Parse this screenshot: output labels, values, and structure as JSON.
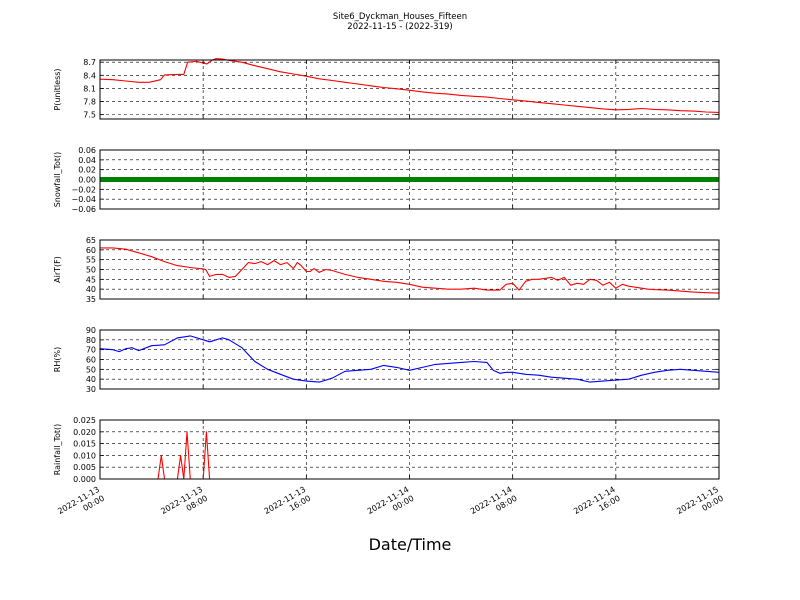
{
  "title_line1": "Site6_Dyckman_Houses_Fifteen",
  "title_line2": "2022-11-15 - (2022-319)",
  "xlabel": "Date/Time",
  "x_ticks": [
    {
      "l1": "2022-11-13",
      "l2": "00:00",
      "h": 0
    },
    {
      "l1": "2022-11-13",
      "l2": "08:00",
      "h": 8
    },
    {
      "l1": "2022-11-13",
      "l2": "16:00",
      "h": 16
    },
    {
      "l1": "2022-11-14",
      "l2": "00:00",
      "h": 24
    },
    {
      "l1": "2022-11-14",
      "l2": "08:00",
      "h": 32
    },
    {
      "l1": "2022-11-14",
      "l2": "16:00",
      "h": 40
    },
    {
      "l1": "2022-11-15",
      "l2": "00:00",
      "h": 48
    }
  ],
  "chart_data": [
    {
      "type": "line",
      "ylabel": "P(unitless)",
      "ylim": [
        7.4,
        8.75
      ],
      "yticks": [
        "7.5",
        "7.8",
        "8.1",
        "8.4",
        "8.7"
      ],
      "ytick_values": [
        7.5,
        7.8,
        8.1,
        8.4,
        8.7
      ],
      "color": "#ff0000",
      "grid": true,
      "x": [
        0,
        1,
        2,
        3,
        3.8,
        4.7,
        5,
        6,
        6.5,
        6.8,
        7.5,
        8,
        8.3,
        8.7,
        9,
        9.5,
        10,
        11,
        12,
        13,
        14,
        15,
        16,
        17,
        18,
        19,
        20,
        21,
        22,
        23,
        24,
        25,
        26,
        27,
        28,
        29,
        30,
        31,
        32,
        33,
        34,
        35,
        36,
        37,
        38,
        39,
        40,
        41,
        42,
        43,
        44,
        45,
        46,
        47,
        48
      ],
      "y": [
        8.31,
        8.3,
        8.27,
        8.24,
        8.24,
        8.3,
        8.41,
        8.42,
        8.42,
        8.7,
        8.72,
        8.68,
        8.66,
        8.75,
        8.78,
        8.77,
        8.74,
        8.7,
        8.62,
        8.55,
        8.48,
        8.43,
        8.38,
        8.32,
        8.28,
        8.24,
        8.2,
        8.16,
        8.12,
        8.09,
        8.06,
        8.02,
        7.99,
        7.97,
        7.94,
        7.92,
        7.9,
        7.87,
        7.84,
        7.81,
        7.78,
        7.75,
        7.72,
        7.69,
        7.66,
        7.63,
        7.61,
        7.62,
        7.64,
        7.62,
        7.61,
        7.59,
        7.58,
        7.56,
        7.55
      ]
    },
    {
      "type": "scatter",
      "ylabel": "Snowfall_Tot()",
      "ylim": [
        -0.06,
        0.06
      ],
      "yticks": [
        "−0.06",
        "−0.04",
        "−0.02",
        "0.00",
        "0.02",
        "0.04",
        "0.06"
      ],
      "ytick_values": [
        -0.06,
        -0.04,
        -0.02,
        0,
        0.02,
        0.04,
        0.06
      ],
      "color": "#008000",
      "grid": true,
      "x_start": 0,
      "x_end": 48,
      "value": 0
    },
    {
      "type": "line",
      "ylabel": "AirT(F)",
      "ylim": [
        35,
        65
      ],
      "yticks": [
        "35",
        "40",
        "45",
        "50",
        "55",
        "60",
        "65"
      ],
      "ytick_values": [
        35,
        40,
        45,
        50,
        55,
        60,
        65
      ],
      "color": "#ff0000",
      "grid": true,
      "x": [
        0,
        1,
        2,
        3,
        4,
        5,
        6,
        7,
        8,
        8.2,
        8.5,
        9,
        9.5,
        10,
        10.5,
        11,
        11.5,
        12,
        12.5,
        13,
        13.5,
        14,
        14.5,
        15,
        15.3,
        15.6,
        16,
        16.3,
        16.6,
        17,
        17.5,
        18,
        19,
        20,
        21,
        22,
        23,
        24,
        25,
        26,
        27,
        28,
        29,
        30,
        31,
        31.5,
        32,
        32.5,
        33,
        33.5,
        34,
        34.5,
        35,
        35.5,
        36,
        36.5,
        37,
        37.5,
        38,
        38.5,
        39,
        39.5,
        40,
        40.5,
        41,
        41.5,
        42,
        42.5,
        43,
        44,
        45,
        46,
        47,
        48
      ],
      "y": [
        61,
        61,
        60.3,
        58.5,
        56.5,
        54,
        52,
        51,
        50.3,
        50,
        46.5,
        47.5,
        47.5,
        46,
        46.5,
        50,
        53.5,
        53,
        54,
        52.5,
        54.5,
        52.5,
        53.5,
        50.5,
        53.5,
        52,
        49,
        49,
        50.5,
        48.5,
        50,
        49.5,
        47.5,
        46,
        45,
        44,
        43.5,
        42.5,
        41,
        40.5,
        40,
        40,
        40.5,
        39.5,
        39.5,
        42.5,
        43,
        39.5,
        44,
        45,
        45,
        45.5,
        46,
        44.5,
        46,
        42,
        43,
        42.5,
        45,
        44.5,
        42,
        43.5,
        40.5,
        42.5,
        41.5,
        41,
        40.5,
        40,
        39.8,
        39.5,
        39,
        38.5,
        38.2,
        38
      ]
    },
    {
      "type": "line",
      "ylabel": "RH(%)",
      "ylim": [
        30,
        90
      ],
      "yticks": [
        "30",
        "40",
        "50",
        "60",
        "70",
        "80",
        "90"
      ],
      "ytick_values": [
        30,
        40,
        50,
        60,
        70,
        80,
        90
      ],
      "color": "#0000ff",
      "grid": true,
      "x": [
        0,
        1,
        1.5,
        2,
        2.5,
        3,
        4,
        5,
        6,
        7,
        8,
        8.5,
        9,
        9.5,
        10,
        11,
        12,
        13,
        14,
        15,
        16,
        17,
        18,
        19,
        20,
        21,
        22,
        23,
        24,
        25,
        26,
        27,
        28,
        29,
        30,
        30.5,
        31,
        31.5,
        32,
        33,
        34,
        35,
        36,
        37,
        38,
        39,
        40,
        41,
        42,
        43,
        44,
        45,
        46,
        47,
        48
      ],
      "y": [
        71,
        70,
        68,
        71,
        72,
        69,
        74,
        75,
        82,
        84,
        80,
        78,
        80,
        82,
        80,
        72,
        58,
        50,
        45,
        40,
        38,
        37,
        41,
        48,
        49,
        50,
        54,
        52,
        49,
        52,
        55,
        56,
        57,
        58,
        57,
        49,
        46,
        47,
        47,
        45,
        44,
        42,
        41,
        40,
        37,
        38,
        39,
        40,
        44,
        47,
        49,
        50,
        49,
        48,
        47
      ]
    },
    {
      "type": "line",
      "ylabel": "Rainfall_Tot()",
      "ylim": [
        0,
        0.025
      ],
      "yticks": [
        "0.000",
        "0.005",
        "0.010",
        "0.015",
        "0.020",
        "0.025"
      ],
      "ytick_values": [
        0,
        0.005,
        0.01,
        0.015,
        0.02,
        0.025
      ],
      "color": "#ff0000",
      "grid": true,
      "x": [
        0,
        4.5,
        4.75,
        5.0,
        6.0,
        6.25,
        6.5,
        6.75,
        7.0,
        8.0,
        8.25,
        8.5,
        48
      ],
      "y": [
        0,
        0,
        0.01,
        0,
        0,
        0.01,
        0,
        0.02,
        0,
        0,
        0.02,
        0,
        0
      ]
    }
  ]
}
